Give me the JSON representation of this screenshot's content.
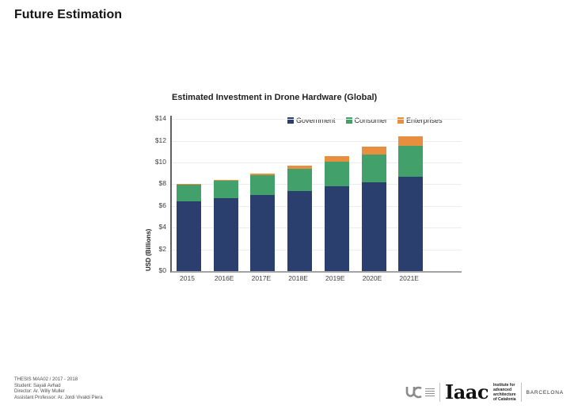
{
  "page": {
    "title": "Future Estimation"
  },
  "chart": {
    "title": "Estimated Investment in Drone Hardware (Global)",
    "y_axis_title": "USD (Billions)"
  },
  "chart_data": {
    "type": "bar",
    "stacked": true,
    "title": "Estimated Investment in Drone Hardware (Global)",
    "xlabel": "",
    "ylabel": "USD (Billions)",
    "ylim": [
      0,
      14
    ],
    "ytick_step": 2,
    "yticks": [
      "$0",
      "$2",
      "$4",
      "$6",
      "$8",
      "$10",
      "$12",
      "$14"
    ],
    "grid": true,
    "legend_position": "top-center-inside",
    "categories": [
      "2015",
      "2016E",
      "2017E",
      "2018E",
      "2019E",
      "2020E",
      "2021E"
    ],
    "series": [
      {
        "name": "Government",
        "color": "#2a3f6e",
        "values": [
          6.4,
          6.7,
          7.0,
          7.4,
          7.8,
          8.2,
          8.7
        ]
      },
      {
        "name": "Consumer",
        "color": "#42a06a",
        "values": [
          1.6,
          1.6,
          1.8,
          2.0,
          2.3,
          2.55,
          2.8
        ]
      },
      {
        "name": "Enterprises",
        "color": "#e78f3e",
        "values": [
          0.05,
          0.1,
          0.2,
          0.3,
          0.45,
          0.7,
          0.9
        ]
      }
    ],
    "totals": [
      8.05,
      8.4,
      9.0,
      9.7,
      10.55,
      11.45,
      12.4
    ]
  },
  "footer": {
    "lines": [
      "THESIS MAA02 / 2017 - 2018",
      "Student: Sayali Avhad",
      "Director: Ar. Willy Muller",
      "Assistant Professor: Ar. Jordi Vivaldi Piera"
    ]
  },
  "logos": {
    "iaac_wordmark": "Iaac",
    "iaac_descriptor_lines": [
      "Institute for",
      "advanced",
      "architecture",
      "of Catalonia"
    ],
    "city": "BARCELONA"
  }
}
